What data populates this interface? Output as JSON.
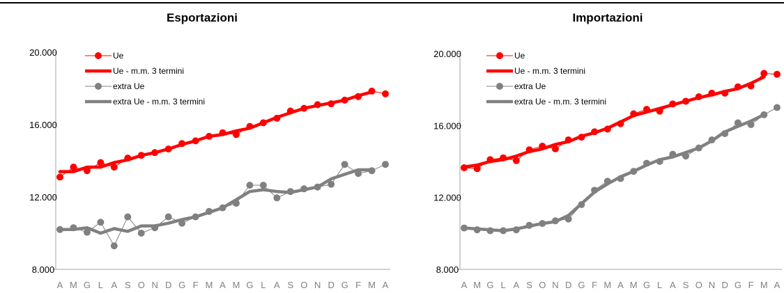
{
  "colors": {
    "ue": "#ff0000",
    "extra": "#808080",
    "axis": "#a6a6a6"
  },
  "legend_labels": [
    "Ue",
    "Ue - m.m. 3 termini",
    "extra Ue",
    "extra Ue - m.m. 3 termini"
  ],
  "chart_data": [
    {
      "type": "line",
      "title": "Esportazioni",
      "xlabel": "",
      "ylabel": "",
      "ylim": [
        8000,
        20000
      ],
      "yticks": [
        "8.000",
        "12.000",
        "16.000",
        "20.000"
      ],
      "ytick_values": [
        8000,
        12000,
        16000,
        20000
      ],
      "categories": [
        "A",
        "M",
        "G",
        "L",
        "A",
        "S",
        "O",
        "N",
        "D",
        "G",
        "F",
        "M",
        "A",
        "M",
        "G",
        "L",
        "A",
        "S",
        "O",
        "N",
        "D",
        "G",
        "F",
        "M",
        "A"
      ],
      "legend_position": "top-left",
      "series": [
        {
          "name": "Ue",
          "style": "markers",
          "values": [
            13100,
            13650,
            13450,
            13900,
            13650,
            14150,
            14300,
            14450,
            14650,
            14950,
            15100,
            15350,
            15550,
            15450,
            15900,
            16100,
            16350,
            16750,
            16900,
            17100,
            17150,
            17350,
            17550,
            17850,
            17700
          ]
        },
        {
          "name": "Ue - m.m. 3 termini",
          "style": "thick",
          "values": [
            13400,
            13400,
            13650,
            13650,
            13900,
            14050,
            14300,
            14450,
            14650,
            14900,
            15100,
            15350,
            15450,
            15650,
            15800,
            16100,
            16400,
            16650,
            16900,
            17050,
            17200,
            17350,
            17600,
            17800,
            null
          ]
        },
        {
          "name": "extra Ue",
          "style": "markers",
          "values": [
            10200,
            10300,
            10050,
            10600,
            9300,
            10900,
            10000,
            10300,
            10900,
            10550,
            10900,
            11200,
            11400,
            11650,
            12650,
            12650,
            11950,
            12300,
            12450,
            12550,
            12700,
            13800,
            13300,
            13450,
            13800
          ]
        },
        {
          "name": "extra Ue - m.m. 3 termini",
          "style": "thick",
          "values": [
            10200,
            10200,
            10300,
            10000,
            10250,
            10100,
            10400,
            10400,
            10550,
            10750,
            10900,
            11150,
            11400,
            11850,
            12300,
            12400,
            12300,
            12250,
            12400,
            12550,
            13000,
            13250,
            13500,
            13500,
            null
          ]
        }
      ]
    },
    {
      "type": "line",
      "title": "Importazioni",
      "xlabel": "",
      "ylabel": "",
      "ylim": [
        8000,
        20000
      ],
      "yticks": [
        "8.000",
        "12.000",
        "16.000",
        "20.000"
      ],
      "ytick_values": [
        8000,
        12000,
        16000,
        20000
      ],
      "categories": [
        "A",
        "M",
        "G",
        "L",
        "A",
        "S",
        "O",
        "N",
        "D",
        "G",
        "F",
        "M",
        "A",
        "M",
        "G",
        "L",
        "A",
        "S",
        "O",
        "N",
        "D",
        "G",
        "F",
        "M",
        "A"
      ],
      "legend_position": "top-left",
      "series": [
        {
          "name": "Ue",
          "style": "markers",
          "values": [
            13650,
            13600,
            14100,
            14200,
            14050,
            14650,
            14850,
            14700,
            15200,
            15350,
            15650,
            15800,
            16100,
            16650,
            16900,
            16800,
            17200,
            17350,
            17600,
            17800,
            17800,
            18150,
            18200,
            18900,
            18850
          ]
        },
        {
          "name": "Ue - m.m. 3 termini",
          "style": "thick",
          "values": [
            13700,
            13800,
            14000,
            14100,
            14300,
            14550,
            14700,
            14950,
            15100,
            15400,
            15600,
            15850,
            16200,
            16550,
            16750,
            16950,
            17150,
            17350,
            17550,
            17700,
            17900,
            18050,
            18350,
            18700,
            null
          ]
        },
        {
          "name": "extra Ue",
          "style": "markers",
          "values": [
            10300,
            10200,
            10150,
            10150,
            10200,
            10450,
            10550,
            10700,
            10800,
            11600,
            12400,
            12900,
            13050,
            13450,
            13900,
            14000,
            14400,
            14300,
            14750,
            15200,
            15550,
            16150,
            16050,
            16600,
            17000
          ]
        },
        {
          "name": "extra Ue - m.m. 3 termini",
          "style": "thick",
          "values": [
            10300,
            10250,
            10200,
            10150,
            10250,
            10400,
            10550,
            10650,
            11000,
            11650,
            12300,
            12750,
            13150,
            13450,
            13800,
            14100,
            14250,
            14500,
            14750,
            15150,
            15650,
            15950,
            16250,
            16600,
            null
          ]
        }
      ]
    }
  ]
}
